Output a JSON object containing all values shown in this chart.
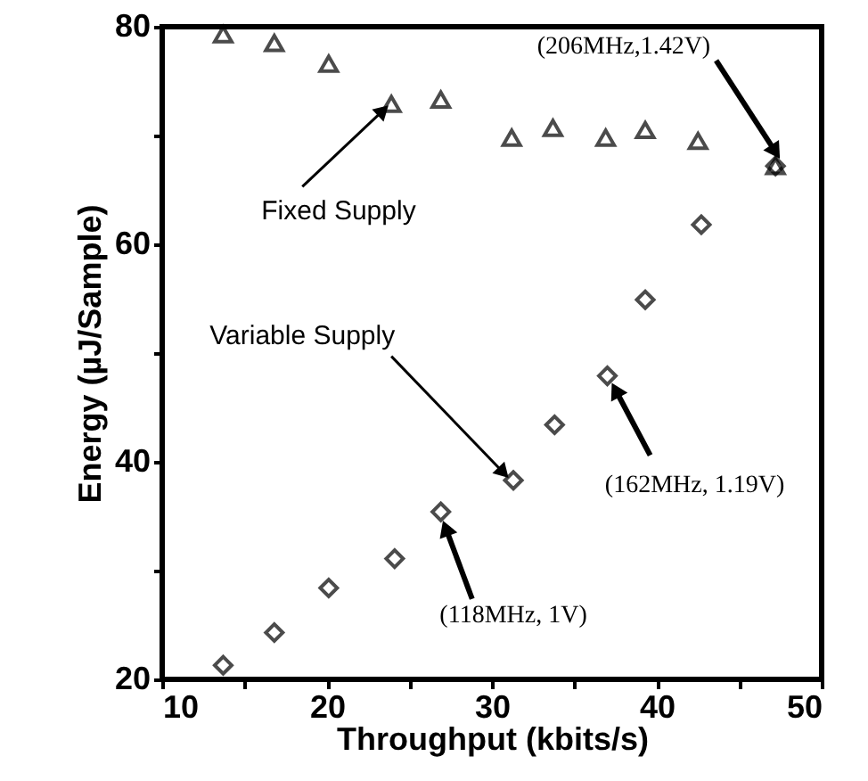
{
  "chart_data": {
    "type": "scatter",
    "xlabel": "Throughput (kbits/s)",
    "ylabel": "Energy (µJ/Sample)",
    "xlim": [
      10,
      50
    ],
    "ylim": [
      20,
      80
    ],
    "xticks": [
      10,
      {
        "value": 15,
        "label": null
      },
      20,
      {
        "value": 25,
        "label": null
      },
      30,
      {
        "value": 35,
        "label": null
      },
      40,
      {
        "value": 45,
        "label": null
      },
      50
    ],
    "yticks": [
      20,
      {
        "value": 30,
        "label": null
      },
      40,
      {
        "value": 50,
        "label": null
      },
      60,
      {
        "value": 70,
        "label": null
      },
      80
    ],
    "grid": false,
    "series": [
      {
        "color": "#000000",
        "marker": "triangle",
        "x": [
          13.7,
          16.8,
          20.1,
          23.9,
          26.9,
          31.2,
          33.7,
          36.9,
          39.3,
          42.5,
          47.2
        ],
        "values": [
          79.3,
          78.5,
          76.6,
          72.9,
          73.3,
          69.8,
          70.7,
          69.8,
          70.5,
          69.5,
          67.2
        ]
      },
      {
        "color": "#000000",
        "marker": "diamond",
        "x": [
          13.7,
          16.8,
          20.1,
          24.1,
          26.9,
          31.3,
          33.8,
          37.0,
          39.3,
          42.7,
          47.2
        ],
        "values": [
          21.3,
          24.3,
          28.4,
          31.1,
          35.4,
          38.3,
          43.4,
          47.9,
          54.9,
          61.8,
          67.2
        ]
      }
    ],
    "annotations": [
      {
        "text": "(206MHz,1.42V)",
        "x": 47.2,
        "y": 67.2
      },
      {
        "text": "Fixed Supply",
        "x": 23.9,
        "y": 72.9
      },
      {
        "text": "Variable Supply",
        "x": 31.3,
        "y": 38.3
      },
      {
        "text": "(162MHz, 1.19V)",
        "x": 37.0,
        "y": 47.9
      },
      {
        "text": "(118MHz, 1V)",
        "x": 26.9,
        "y": 35.4
      }
    ]
  }
}
